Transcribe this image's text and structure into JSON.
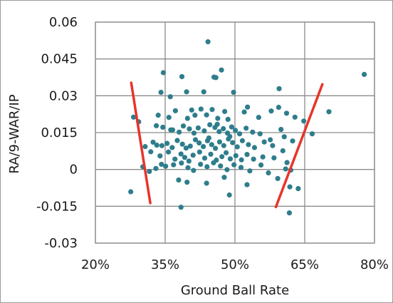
{
  "chart_data": {
    "type": "scatter",
    "xlabel": "Ground Ball Rate",
    "ylabel": "RA/9-WAR/IP",
    "x_ticks": [
      "20%",
      "35%",
      "50%",
      "65%",
      "80%"
    ],
    "x_tick_values": [
      20,
      35,
      50,
      65,
      80
    ],
    "y_ticks": [
      "0.06",
      "0.045",
      "0.03",
      "0.015",
      "0",
      "-0.015",
      "-0.03"
    ],
    "y_tick_values": [
      0.06,
      0.045,
      0.03,
      0.015,
      0,
      -0.015,
      -0.03
    ],
    "xlim": [
      20,
      80
    ],
    "ylim": [
      -0.03,
      0.06
    ],
    "grid": true,
    "colors": {
      "points": "#2e7d8c",
      "trend_lines": "#e8342a",
      "grid": "#8c8c8c"
    },
    "trend_lines": [
      {
        "x": [
          27.7,
          31.8
        ],
        "y": [
          0.0353,
          -0.0137
        ]
      },
      {
        "x": [
          58.8,
          68.8
        ],
        "y": [
          -0.0153,
          0.0347
        ]
      }
    ],
    "points": [
      [
        44.2,
        0.052
      ],
      [
        34.6,
        0.0394
      ],
      [
        38.6,
        0.0378
      ],
      [
        45.5,
        0.0376
      ],
      [
        47.1,
        0.0405
      ],
      [
        45.9,
        0.0374
      ],
      [
        77.8,
        0.0387
      ],
      [
        34.1,
        0.0314
      ],
      [
        36.1,
        0.0296
      ],
      [
        39.6,
        0.0316
      ],
      [
        43.3,
        0.0316
      ],
      [
        49.7,
        0.0314
      ],
      [
        52.7,
        0.0254
      ],
      [
        59.5,
        0.0329
      ],
      [
        70.2,
        0.0235
      ],
      [
        28.2,
        0.0213
      ],
      [
        29.3,
        0.0194
      ],
      [
        33.5,
        0.0221
      ],
      [
        35.8,
        0.0212
      ],
      [
        37.2,
        0.0239
      ],
      [
        39.8,
        0.0208
      ],
      [
        41.4,
        0.0221
      ],
      [
        42.7,
        0.0246
      ],
      [
        43.9,
        0.0222
      ],
      [
        45.1,
        0.0244
      ],
      [
        46.3,
        0.0208
      ],
      [
        47.8,
        0.0236
      ],
      [
        48.5,
        0.0204
      ],
      [
        52.0,
        0.0234
      ],
      [
        55.1,
        0.0212
      ],
      [
        57.8,
        0.0238
      ],
      [
        59.4,
        0.0253
      ],
      [
        61.1,
        0.0229
      ],
      [
        62.9,
        0.0213
      ],
      [
        64.8,
        0.0197
      ],
      [
        66.6,
        0.0145
      ],
      [
        33.1,
        0.0178
      ],
      [
        34.5,
        0.0172
      ],
      [
        36.6,
        0.0161
      ],
      [
        38.0,
        0.0152
      ],
      [
        38.9,
        0.0177
      ],
      [
        40.2,
        0.0165
      ],
      [
        41.2,
        0.0148
      ],
      [
        42.1,
        0.0169
      ],
      [
        43.4,
        0.0157
      ],
      [
        44.6,
        0.0182
      ],
      [
        45.7,
        0.0171
      ],
      [
        46.6,
        0.0154
      ],
      [
        47.5,
        0.0166
      ],
      [
        48.4,
        0.0148
      ],
      [
        49.3,
        0.0173
      ],
      [
        50.1,
        0.0159
      ],
      [
        51.0,
        0.0145
      ],
      [
        52.4,
        0.0168
      ],
      [
        53.8,
        0.0152
      ],
      [
        55.4,
        0.0145
      ],
      [
        57.6,
        0.0121
      ],
      [
        59.9,
        0.0163
      ],
      [
        60.6,
        0.0133
      ],
      [
        62.4,
        0.0116
      ],
      [
        32.4,
        0.0111
      ],
      [
        33.2,
        0.0099
      ],
      [
        34.3,
        0.0097
      ],
      [
        35.4,
        0.0106
      ],
      [
        36.5,
        0.0089
      ],
      [
        37.6,
        0.0118
      ],
      [
        38.7,
        0.0103
      ],
      [
        39.5,
        0.0087
      ],
      [
        40.4,
        0.0095
      ],
      [
        41.5,
        0.0121
      ],
      [
        42.3,
        0.0108
      ],
      [
        43.2,
        0.0093
      ],
      [
        44.1,
        0.0117
      ],
      [
        45.0,
        0.0101
      ],
      [
        45.8,
        0.0086
      ],
      [
        46.7,
        0.0112
      ],
      [
        47.6,
        0.0097
      ],
      [
        48.6,
        0.0124
      ],
      [
        49.5,
        0.0109
      ],
      [
        50.5,
        0.0092
      ],
      [
        51.6,
        0.0117
      ],
      [
        52.9,
        0.0101
      ],
      [
        54.2,
        0.0089
      ],
      [
        56.3,
        0.0112
      ],
      [
        58.1,
        0.0097
      ],
      [
        60.3,
        0.0076
      ],
      [
        61.2,
        0.0028
      ],
      [
        30.7,
        0.0093
      ],
      [
        31.9,
        0.0072
      ],
      [
        33.9,
        0.0055
      ],
      [
        35.7,
        0.0071
      ],
      [
        37.1,
        0.0042
      ],
      [
        38.4,
        0.0063
      ],
      [
        39.2,
        0.0049
      ],
      [
        40.1,
        0.0034
      ],
      [
        41.0,
        0.0058
      ],
      [
        42.4,
        0.0071
      ],
      [
        43.5,
        0.0046
      ],
      [
        44.8,
        0.0062
      ],
      [
        46.0,
        0.0038
      ],
      [
        47.2,
        0.0052
      ],
      [
        48.1,
        0.0068
      ],
      [
        49.0,
        0.0043
      ],
      [
        50.2,
        0.0056
      ],
      [
        51.4,
        0.0039
      ],
      [
        52.6,
        0.0061
      ],
      [
        54.0,
        0.0042
      ],
      [
        56.0,
        0.0051
      ],
      [
        58.4,
        0.0047
      ],
      [
        60.9,
        0.0002
      ],
      [
        62.0,
        -0.0003
      ],
      [
        30.2,
        0.0011
      ],
      [
        31.6,
        -0.0008
      ],
      [
        33.0,
        0.0004
      ],
      [
        35.1,
        0.0013
      ],
      [
        36.8,
        0.0019
      ],
      [
        38.5,
        0.0026
      ],
      [
        39.9,
        0.0007
      ],
      [
        41.1,
        -0.0004
      ],
      [
        42.6,
        0.0021
      ],
      [
        44.0,
        0.0011
      ],
      [
        45.4,
        0.0027
      ],
      [
        46.9,
        0.0014
      ],
      [
        48.3,
        -0.0001
      ],
      [
        49.8,
        0.0019
      ],
      [
        51.3,
        0.0008
      ],
      [
        53.2,
        -0.0006
      ],
      [
        55.6,
        0.0018
      ],
      [
        57.2,
        -0.0014
      ],
      [
        59.2,
        -0.0037
      ],
      [
        61.8,
        -0.0071
      ],
      [
        63.6,
        -0.0078
      ],
      [
        27.6,
        -0.0091
      ],
      [
        37.9,
        -0.0043
      ],
      [
        39.7,
        -0.0052
      ],
      [
        43.9,
        -0.0056
      ],
      [
        47.7,
        -0.0032
      ],
      [
        48.8,
        -0.0104
      ],
      [
        52.6,
        -0.0062
      ],
      [
        38.4,
        -0.0154
      ],
      [
        61.7,
        -0.0177
      ],
      [
        34.2,
        0.0021
      ],
      [
        36.2,
        0.0161
      ],
      [
        40.7,
        0.0242
      ],
      [
        44.4,
        0.0128
      ],
      [
        46.2,
        0.0184
      ],
      [
        48.9,
        0.0134
      ]
    ]
  }
}
